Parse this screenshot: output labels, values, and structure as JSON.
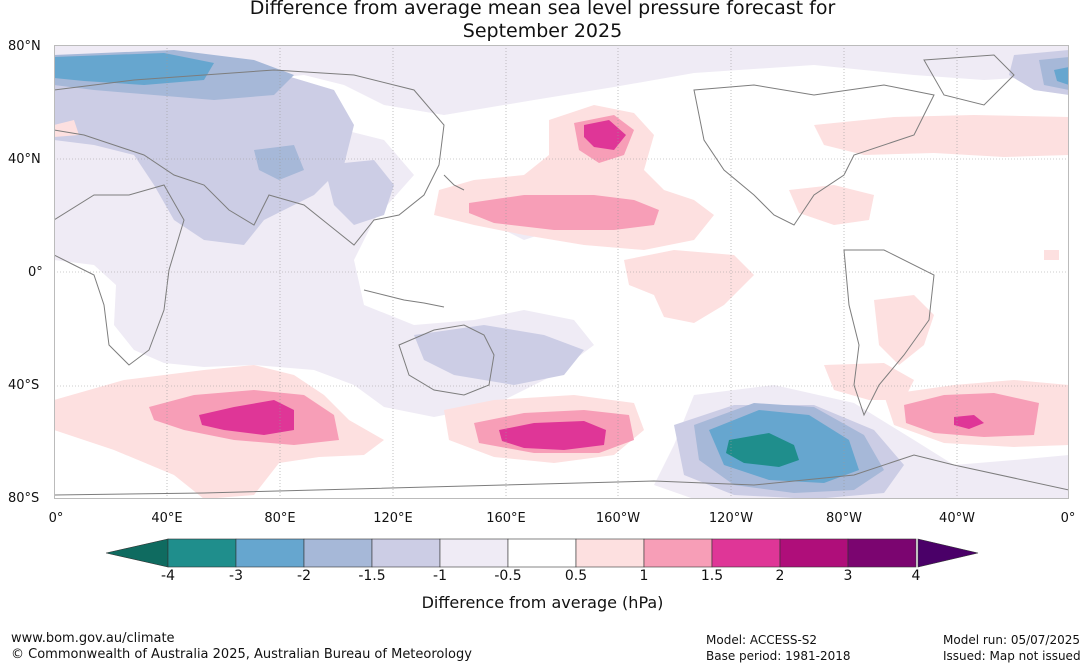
{
  "title_line1": "Difference from average mean sea level pressure forecast for",
  "title_line2": "September 2025",
  "lat_labels": [
    "80°N",
    "40°N",
    "0°",
    "40°S",
    "80°S"
  ],
  "lon_labels": [
    "0°",
    "40°E",
    "80°E",
    "120°E",
    "160°E",
    "160°W",
    "120°W",
    "80°W",
    "40°W",
    "0°"
  ],
  "colorbar": {
    "ticks": [
      "-4",
      "-3",
      "-2",
      "-1.5",
      "-1",
      "-0.5",
      "0.5",
      "1",
      "1.5",
      "2",
      "3",
      "4"
    ],
    "colors": [
      "#1f8e8c",
      "#66a6cf",
      "#a6b8d8",
      "#cccde5",
      "#efebf5",
      "#ffffff",
      "#fde0e0",
      "#f79eb7",
      "#df3697",
      "#af0e7a",
      "#7b0570"
    ],
    "low_extend_color": "#0f6b60",
    "high_extend_color": "#4a0068",
    "label": "Difference from average (hPa)"
  },
  "footer": {
    "website": "www.bom.gov.au/climate",
    "copyright": "© Commonwealth of Australia 2025, Australian Bureau of Meteorology",
    "model": "Model: ACCESS-S2",
    "base_period": "Base period: 1981-2018",
    "model_run": "Model run: 05/07/2025",
    "issued": "Issued: Map not issued"
  }
}
